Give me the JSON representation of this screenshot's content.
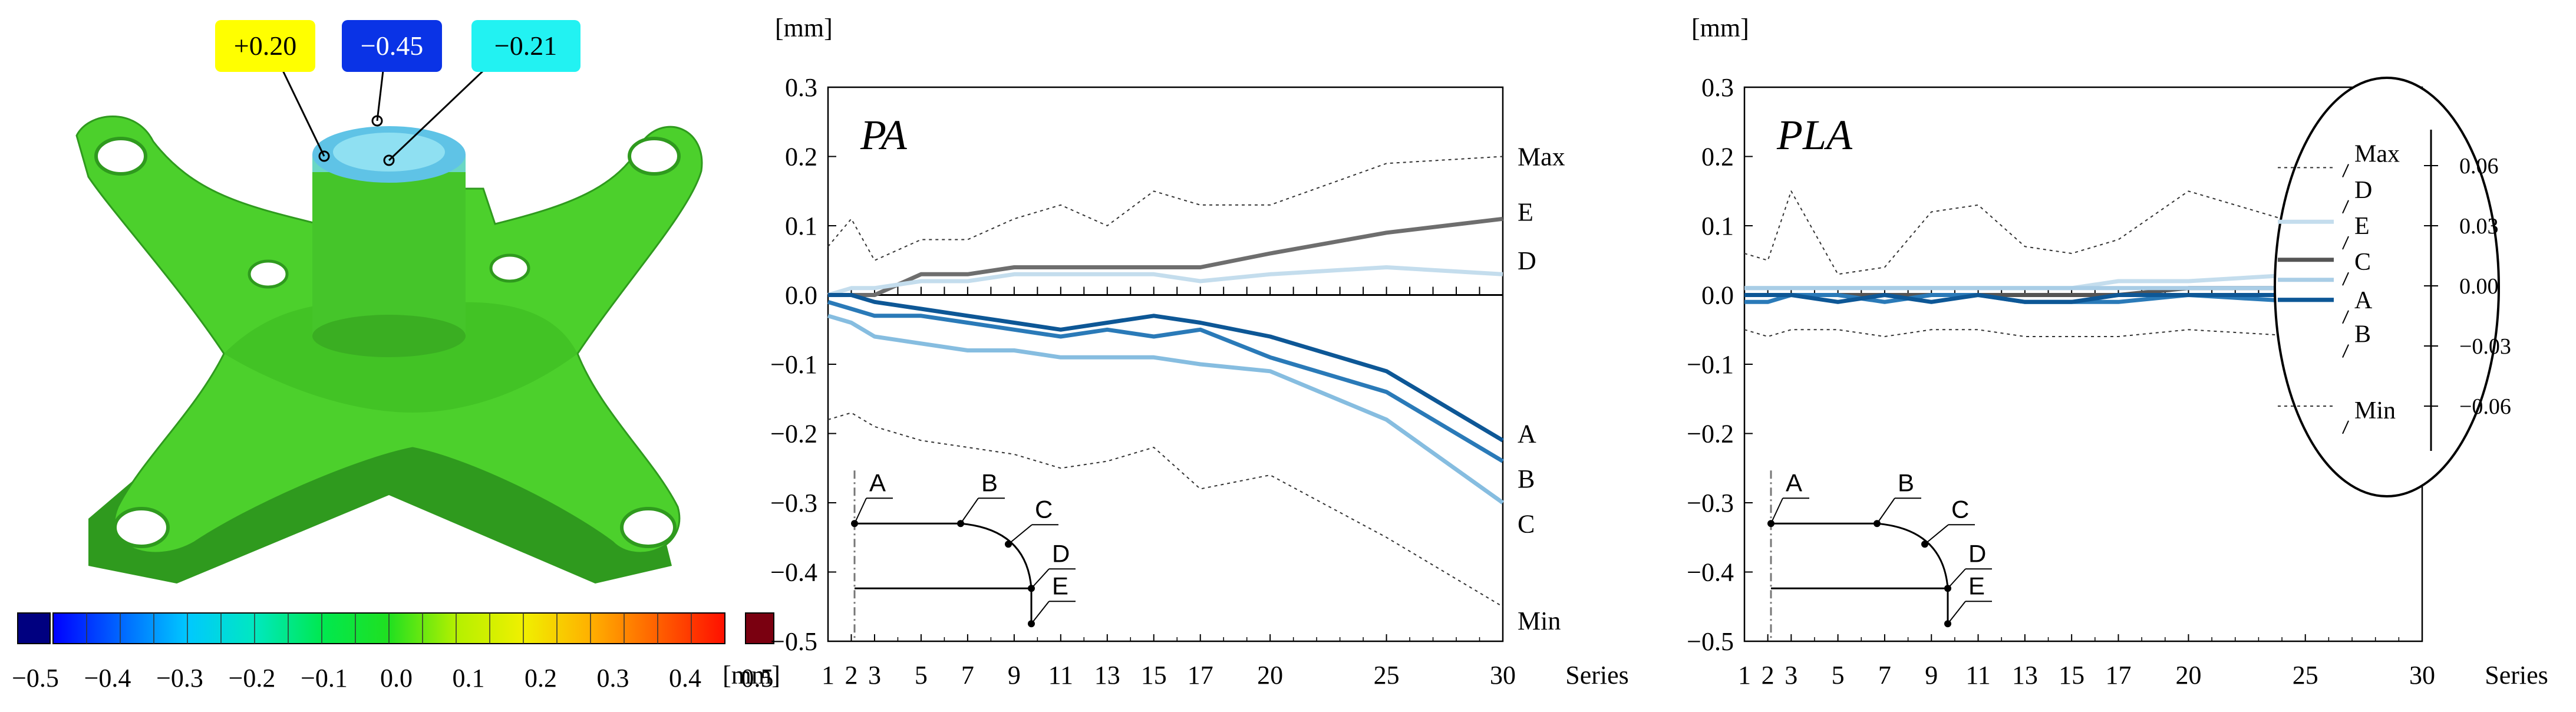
{
  "figure": {
    "colors": {
      "part_green": "#4cd02c",
      "part_green_dark": "#2f9a1e",
      "cap_blue": "#5fc3e6",
      "cap_light": "#8fe0f2",
      "axis": "#000000",
      "grid_dotted": "#222222"
    },
    "callouts": [
      {
        "text": "+0.20",
        "bg": "#ffff00",
        "fg": "#000000"
      },
      {
        "text": "−0.45",
        "bg": "#0a33e6",
        "fg": "#ffffff"
      },
      {
        "text": "−0.21",
        "bg": "#22f2f2",
        "fg": "#000000"
      }
    ],
    "colorbar": {
      "stops": [
        "#0000ff",
        "#0066ff",
        "#00c8ff",
        "#00e8c0",
        "#00e850",
        "#20e020",
        "#b4f000",
        "#f0f000",
        "#ffb000",
        "#ff6000",
        "#ff1000"
      ],
      "under_color": "#000080",
      "over_color": "#7a0010",
      "tick_labels": [
        "−0.5",
        "−0.4",
        "−0.3",
        "−0.2",
        "−0.1",
        "0.0",
        "0.1",
        "0.2",
        "0.3",
        "0.4",
        "0.5"
      ]
    }
  },
  "chart_data": [
    {
      "type": "line",
      "title": "PA",
      "ylabel": "[mm]",
      "xlabel_left": "[mm]",
      "xlabel": "Series",
      "ylim": [
        -0.5,
        0.3
      ],
      "xlim": [
        1,
        30
      ],
      "yticks": [
        0.3,
        0.2,
        0.1,
        0.0,
        -0.1,
        -0.2,
        -0.3,
        -0.4,
        -0.5
      ],
      "ytick_labels": [
        "0.3",
        "0.2",
        "0.1",
        "0.0",
        "−0.1",
        "−0.2",
        "−0.3",
        "−0.4",
        "−0.5"
      ],
      "xtick_labels": [
        "1",
        "2",
        "3",
        "5",
        "7",
        "9",
        "11",
        "13",
        "15",
        "17",
        "20",
        "25",
        "30"
      ],
      "xtick_values": [
        1,
        2,
        3,
        5,
        7,
        9,
        11,
        13,
        15,
        17,
        20,
        25,
        30
      ],
      "x": [
        1,
        2,
        3,
        5,
        7,
        9,
        11,
        13,
        15,
        17,
        20,
        25,
        30
      ],
      "series": [
        {
          "name": "Max",
          "style": "dotted",
          "color": "#333333",
          "values": [
            0.07,
            0.11,
            0.05,
            0.08,
            0.08,
            0.11,
            0.13,
            0.1,
            0.15,
            0.13,
            0.13,
            0.19,
            0.2
          ]
        },
        {
          "name": "E",
          "style": "solid",
          "color": "#6e6e6e",
          "values": [
            0.0,
            0.0,
            0.0,
            0.03,
            0.03,
            0.04,
            0.04,
            0.04,
            0.04,
            0.04,
            0.06,
            0.09,
            0.11
          ]
        },
        {
          "name": "D",
          "style": "solid",
          "color": "#c4dded",
          "values": [
            0.0,
            0.01,
            0.01,
            0.02,
            0.02,
            0.03,
            0.03,
            0.03,
            0.03,
            0.02,
            0.03,
            0.04,
            0.03
          ]
        },
        {
          "name": "A",
          "style": "solid",
          "color": "#0d5796",
          "values": [
            0.0,
            0.0,
            -0.01,
            -0.02,
            -0.03,
            -0.04,
            -0.05,
            -0.04,
            -0.03,
            -0.04,
            -0.06,
            -0.11,
            -0.21
          ]
        },
        {
          "name": "B",
          "style": "solid",
          "color": "#2a7ab8",
          "values": [
            -0.01,
            -0.02,
            -0.03,
            -0.03,
            -0.04,
            -0.05,
            -0.06,
            -0.05,
            -0.06,
            -0.05,
            -0.09,
            -0.14,
            -0.24
          ]
        },
        {
          "name": "C",
          "style": "solid",
          "color": "#86bde0",
          "values": [
            -0.03,
            -0.04,
            -0.06,
            -0.07,
            -0.08,
            -0.08,
            -0.09,
            -0.09,
            -0.09,
            -0.1,
            -0.11,
            -0.18,
            -0.3
          ]
        },
        {
          "name": "Min",
          "style": "dotted",
          "color": "#333333",
          "values": [
            -0.18,
            -0.17,
            -0.19,
            -0.21,
            -0.22,
            -0.23,
            -0.25,
            -0.24,
            -0.22,
            -0.28,
            -0.26,
            -0.35,
            -0.45
          ]
        }
      ],
      "end_labels": [
        {
          "text": "Max",
          "y": 0.2
        },
        {
          "text": "E",
          "y": 0.12
        },
        {
          "text": "D",
          "y": 0.05
        },
        {
          "text": "A",
          "y": -0.2
        },
        {
          "text": "B",
          "y": -0.265
        },
        {
          "text": "C",
          "y": -0.33
        },
        {
          "text": "Min",
          "y": -0.47
        }
      ],
      "inset_labels": [
        "A",
        "B",
        "C",
        "D",
        "E"
      ]
    },
    {
      "type": "line",
      "title": "PLA",
      "ylabel": "[mm]",
      "xlabel": "Series",
      "ylim": [
        -0.5,
        0.3
      ],
      "xlim": [
        1,
        30
      ],
      "yticks": [
        0.3,
        0.2,
        0.1,
        0.0,
        -0.1,
        -0.2,
        -0.3,
        -0.4,
        -0.5
      ],
      "ytick_labels": [
        "0.3",
        "0.2",
        "0.1",
        "0.0",
        "−0.1",
        "−0.2",
        "−0.3",
        "−0.4",
        "−0.5"
      ],
      "xtick_labels": [
        "1",
        "2",
        "3",
        "5",
        "7",
        "9",
        "11",
        "13",
        "15",
        "17",
        "20",
        "25",
        "30"
      ],
      "xtick_values": [
        1,
        2,
        3,
        5,
        7,
        9,
        11,
        13,
        15,
        17,
        20,
        25,
        30
      ],
      "x": [
        1,
        2,
        3,
        5,
        7,
        9,
        11,
        13,
        15,
        17,
        20,
        25,
        26
      ],
      "series": [
        {
          "name": "Max",
          "style": "dotted",
          "color": "#333333",
          "values": [
            0.06,
            0.05,
            0.15,
            0.03,
            0.04,
            0.12,
            0.13,
            0.07,
            0.06,
            0.08,
            0.15,
            0.1,
            0.09
          ]
        },
        {
          "name": "E",
          "style": "solid",
          "color": "#c4dded",
          "values": [
            0.01,
            0.01,
            0.01,
            0.01,
            0.01,
            0.01,
            0.01,
            0.01,
            0.01,
            0.02,
            0.02,
            0.03,
            0.03
          ]
        },
        {
          "name": "C",
          "style": "solid",
          "color": "#555555",
          "values": [
            0.0,
            0.0,
            0.0,
            0.0,
            0.0,
            0.0,
            0.0,
            0.0,
            0.0,
            0.0,
            0.01,
            0.01,
            0.01
          ]
        },
        {
          "name": "D",
          "style": "solid",
          "color": "#a9cde6",
          "values": [
            0.01,
            0.01,
            0.01,
            0.01,
            0.01,
            0.01,
            0.01,
            0.01,
            0.01,
            0.01,
            0.01,
            0.01,
            0.01
          ]
        },
        {
          "name": "A",
          "style": "solid",
          "color": "#2a7ab8",
          "values": [
            -0.01,
            -0.01,
            0.0,
            0.0,
            -0.01,
            0.0,
            0.0,
            -0.01,
            -0.01,
            -0.01,
            0.0,
            -0.01,
            -0.01
          ]
        },
        {
          "name": "B",
          "style": "solid",
          "color": "#0d5796",
          "values": [
            0.0,
            0.0,
            0.0,
            -0.01,
            0.0,
            -0.01,
            0.0,
            -0.01,
            -0.01,
            0.0,
            0.0,
            0.0,
            -0.01
          ]
        },
        {
          "name": "Min",
          "style": "dotted",
          "color": "#333333",
          "values": [
            -0.05,
            -0.06,
            -0.05,
            -0.05,
            -0.06,
            -0.05,
            -0.05,
            -0.06,
            -0.06,
            -0.06,
            -0.05,
            -0.06,
            -0.06
          ]
        }
      ],
      "inset_labels": [
        "A",
        "B",
        "C",
        "D",
        "E"
      ],
      "zoom": {
        "yticks": [
          0.06,
          0.03,
          0.0,
          -0.03,
          -0.06
        ],
        "ytick_labels": [
          "0.06",
          "0.03",
          "0.00",
          "−0.03",
          "−0.06"
        ],
        "labels": [
          {
            "text": "Max",
            "y": 0.066
          },
          {
            "text": "D",
            "y": 0.048
          },
          {
            "text": "E",
            "y": 0.03
          },
          {
            "text": "C",
            "y": 0.012
          },
          {
            "text": "A",
            "y": -0.007
          },
          {
            "text": "B",
            "y": -0.024
          },
          {
            "text": "Min",
            "y": -0.062
          }
        ],
        "lines": [
          {
            "name": "Max",
            "style": "dotted",
            "color": "#333333",
            "y": 0.059
          },
          {
            "name": "E",
            "style": "solid",
            "color": "#c4dded",
            "y": 0.032
          },
          {
            "name": "C",
            "style": "solid",
            "color": "#555555",
            "y": 0.013
          },
          {
            "name": "D",
            "style": "solid",
            "color": "#a9cde6",
            "y": 0.003
          },
          {
            "name": "A",
            "style": "solid",
            "color": "#2a7ab8",
            "y": -0.007
          },
          {
            "name": "B",
            "style": "solid",
            "color": "#0d5796",
            "y": -0.007
          },
          {
            "name": "Min",
            "style": "dotted",
            "color": "#333333",
            "y": -0.06
          }
        ]
      }
    }
  ]
}
